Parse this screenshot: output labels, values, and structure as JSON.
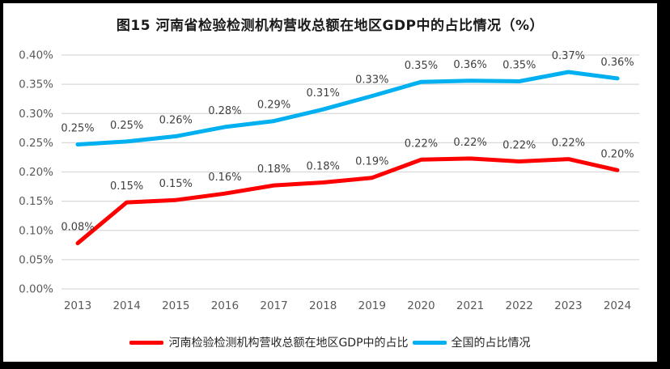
{
  "title": "图15  河南省检验检测机构营收总额在地区GDP中的占比情况（%）",
  "colors": {
    "henan_line": "#FF0000",
    "national_line": "#00B0F0",
    "grid": "#D9D9D9",
    "axis_text": "#595959",
    "label_text": "#404040",
    "frame": "#000000",
    "background": "#FFFFFF"
  },
  "chart_data": {
    "type": "line",
    "title": "图15  河南省检验检测机构营收总额在地区GDP中的占比情况（%）",
    "categories": [
      "2013",
      "2014",
      "2015",
      "2016",
      "2017",
      "2018",
      "2019",
      "2020",
      "2021",
      "2022",
      "2023",
      "2024"
    ],
    "series": [
      {
        "name": "河南检验检测机构营收总额在地区GDP中的占比",
        "color": "#FF0000",
        "values": [
          0.08,
          0.15,
          0.15,
          0.16,
          0.18,
          0.18,
          0.19,
          0.22,
          0.22,
          0.22,
          0.22,
          0.2
        ],
        "labels": [
          "0.08%",
          "0.15%",
          "0.15%",
          "0.16%",
          "0.18%",
          "0.18%",
          "0.19%",
          "0.22%",
          "0.22%",
          "0.22%",
          "0.22%",
          "0.20%"
        ],
        "render_values": [
          0.078,
          0.148,
          0.152,
          0.163,
          0.177,
          0.182,
          0.19,
          0.221,
          0.223,
          0.218,
          0.222,
          0.203
        ]
      },
      {
        "name": "全国的占比情况",
        "color": "#00B0F0",
        "values": [
          0.25,
          0.25,
          0.26,
          0.28,
          0.29,
          0.31,
          0.33,
          0.35,
          0.36,
          0.35,
          0.37,
          0.36
        ],
        "labels": [
          "0.25%",
          "0.25%",
          "0.26%",
          "0.28%",
          "0.29%",
          "0.31%",
          "0.33%",
          "0.35%",
          "0.36%",
          "0.35%",
          "0.37%",
          "0.36%"
        ],
        "render_values": [
          0.247,
          0.252,
          0.261,
          0.277,
          0.287,
          0.307,
          0.33,
          0.354,
          0.356,
          0.355,
          0.371,
          0.36
        ]
      }
    ],
    "xlabel": "",
    "ylabel": "",
    "ylim": [
      0,
      0.4
    ],
    "ytick_step": 0.05,
    "ytick_labels": [
      "0.00%",
      "0.05%",
      "0.10%",
      "0.15%",
      "0.20%",
      "0.25%",
      "0.30%",
      "0.35%",
      "0.40%"
    ],
    "grid": true,
    "legend_position": "bottom"
  }
}
